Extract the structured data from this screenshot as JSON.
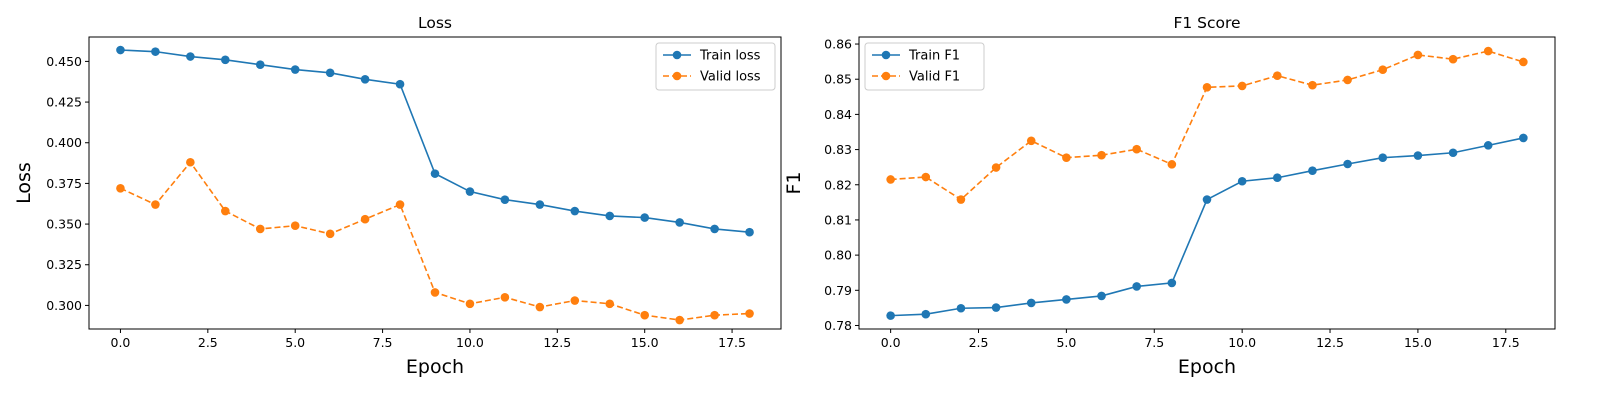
{
  "chart_data": [
    {
      "type": "line",
      "title": "Loss",
      "xlabel": "Epoch",
      "ylabel": "Loss",
      "xlim": [
        -0.9,
        18.9
      ],
      "ylim": [
        0.2855,
        0.465
      ],
      "xticks": [
        0.0,
        2.5,
        5.0,
        7.5,
        10.0,
        12.5,
        15.0,
        17.5
      ],
      "xtick_labels": [
        "0.0",
        "2.5",
        "5.0",
        "7.5",
        "10.0",
        "12.5",
        "15.0",
        "17.5"
      ],
      "yticks": [
        0.3,
        0.325,
        0.35,
        0.375,
        0.4,
        0.425,
        0.45
      ],
      "ytick_labels": [
        "0.300",
        "0.325",
        "0.350",
        "0.375",
        "0.400",
        "0.425",
        "0.450"
      ],
      "grid": false,
      "legend": "top-right",
      "x": [
        0,
        1,
        2,
        3,
        4,
        5,
        6,
        7,
        8,
        9,
        10,
        11,
        12,
        13,
        14,
        15,
        16,
        17,
        18
      ],
      "series": [
        {
          "name": "Train loss",
          "color": "#1f77b4",
          "style": "solid",
          "marker": "circle",
          "values": [
            0.457,
            0.456,
            0.453,
            0.451,
            0.448,
            0.445,
            0.443,
            0.439,
            0.436,
            0.381,
            0.37,
            0.365,
            0.362,
            0.358,
            0.355,
            0.354,
            0.351,
            0.347,
            0.345
          ]
        },
        {
          "name": "Valid loss",
          "color": "#ff7f0e",
          "style": "dashed",
          "marker": "circle",
          "values": [
            0.372,
            0.362,
            0.388,
            0.358,
            0.347,
            0.349,
            0.344,
            0.353,
            0.362,
            0.308,
            0.301,
            0.305,
            0.299,
            0.303,
            0.301,
            0.294,
            0.291,
            0.294,
            0.295
          ]
        }
      ]
    },
    {
      "type": "line",
      "title": "F1 Score",
      "xlabel": "Epoch",
      "ylabel": "F1",
      "xlim": [
        -0.9,
        18.9
      ],
      "ylim": [
        0.779,
        0.862
      ],
      "xticks": [
        0.0,
        2.5,
        5.0,
        7.5,
        10.0,
        12.5,
        15.0,
        17.5
      ],
      "xtick_labels": [
        "0.0",
        "2.5",
        "5.0",
        "7.5",
        "10.0",
        "12.5",
        "15.0",
        "17.5"
      ],
      "yticks": [
        0.78,
        0.79,
        0.8,
        0.81,
        0.82,
        0.83,
        0.84,
        0.85,
        0.86
      ],
      "ytick_labels": [
        "0.78",
        "0.79",
        "0.80",
        "0.81",
        "0.82",
        "0.83",
        "0.84",
        "0.85",
        "0.86"
      ],
      "grid": false,
      "legend": "top-left",
      "x": [
        0,
        1,
        2,
        3,
        4,
        5,
        6,
        7,
        8,
        9,
        10,
        11,
        12,
        13,
        14,
        15,
        16,
        17,
        18
      ],
      "series": [
        {
          "name": "Train F1",
          "color": "#1f77b4",
          "style": "solid",
          "marker": "circle",
          "values": [
            0.7828,
            0.7832,
            0.7849,
            0.7851,
            0.7864,
            0.7874,
            0.7884,
            0.7911,
            0.7921,
            0.8158,
            0.821,
            0.822,
            0.824,
            0.8259,
            0.8277,
            0.8283,
            0.8291,
            0.8312,
            0.8333
          ]
        },
        {
          "name": "Valid F1",
          "color": "#ff7f0e",
          "style": "dashed",
          "marker": "circle",
          "values": [
            0.8215,
            0.8222,
            0.8158,
            0.8249,
            0.8325,
            0.8277,
            0.8284,
            0.8301,
            0.8258,
            0.8477,
            0.8481,
            0.851,
            0.8483,
            0.8498,
            0.8527,
            0.8569,
            0.8557,
            0.858,
            0.8549
          ]
        }
      ]
    }
  ]
}
